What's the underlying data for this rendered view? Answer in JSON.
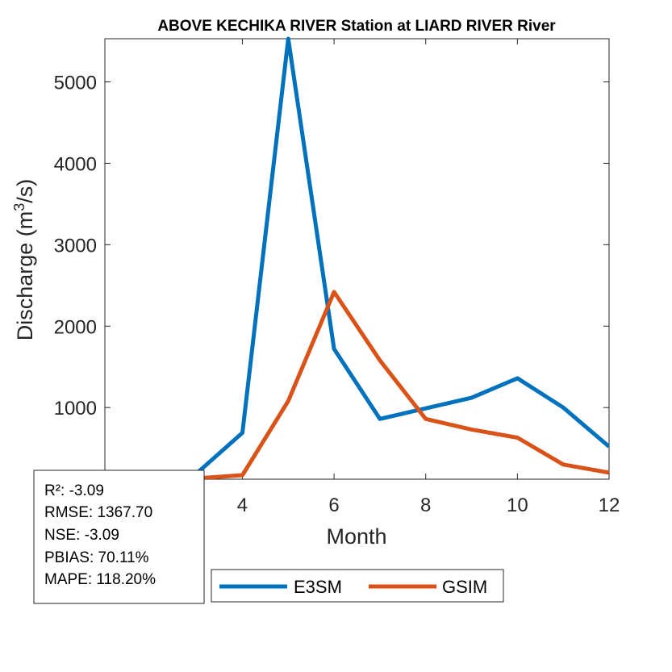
{
  "chart_data": {
    "type": "line",
    "title": "ABOVE KECHIKA RIVER  Station at  LIARD RIVER  River",
    "xlabel": "Month",
    "ylabel_main": "Discharge (m",
    "ylabel_sup": "3",
    "ylabel_end": "/s)",
    "xlim": [
      1,
      12
    ],
    "ylim": [
      120,
      5530
    ],
    "xticks": [
      4,
      6,
      8,
      10,
      12
    ],
    "yticks": [
      1000,
      2000,
      3000,
      4000,
      5000
    ],
    "x": [
      1,
      2,
      3,
      4,
      5,
      6,
      7,
      8,
      9,
      10,
      11,
      12
    ],
    "series": [
      {
        "name": "E3SM",
        "color": "#0072BD",
        "values": [
          200,
          180,
          190,
          690,
          5530,
          1720,
          860,
          990,
          1120,
          1360,
          1000,
          520
        ]
      },
      {
        "name": "GSIM",
        "color": "#D95319",
        "values": [
          130,
          130,
          130,
          170,
          1080,
          2420,
          1580,
          860,
          730,
          630,
          300,
          200
        ]
      }
    ],
    "legend_position": "bottom-outside",
    "grid": false,
    "stats": [
      "R²: -3.09",
      "RMSE: 1367.70",
      "NSE: -3.09",
      "PBIAS: 70.11%",
      "MAPE: 118.20%"
    ]
  }
}
